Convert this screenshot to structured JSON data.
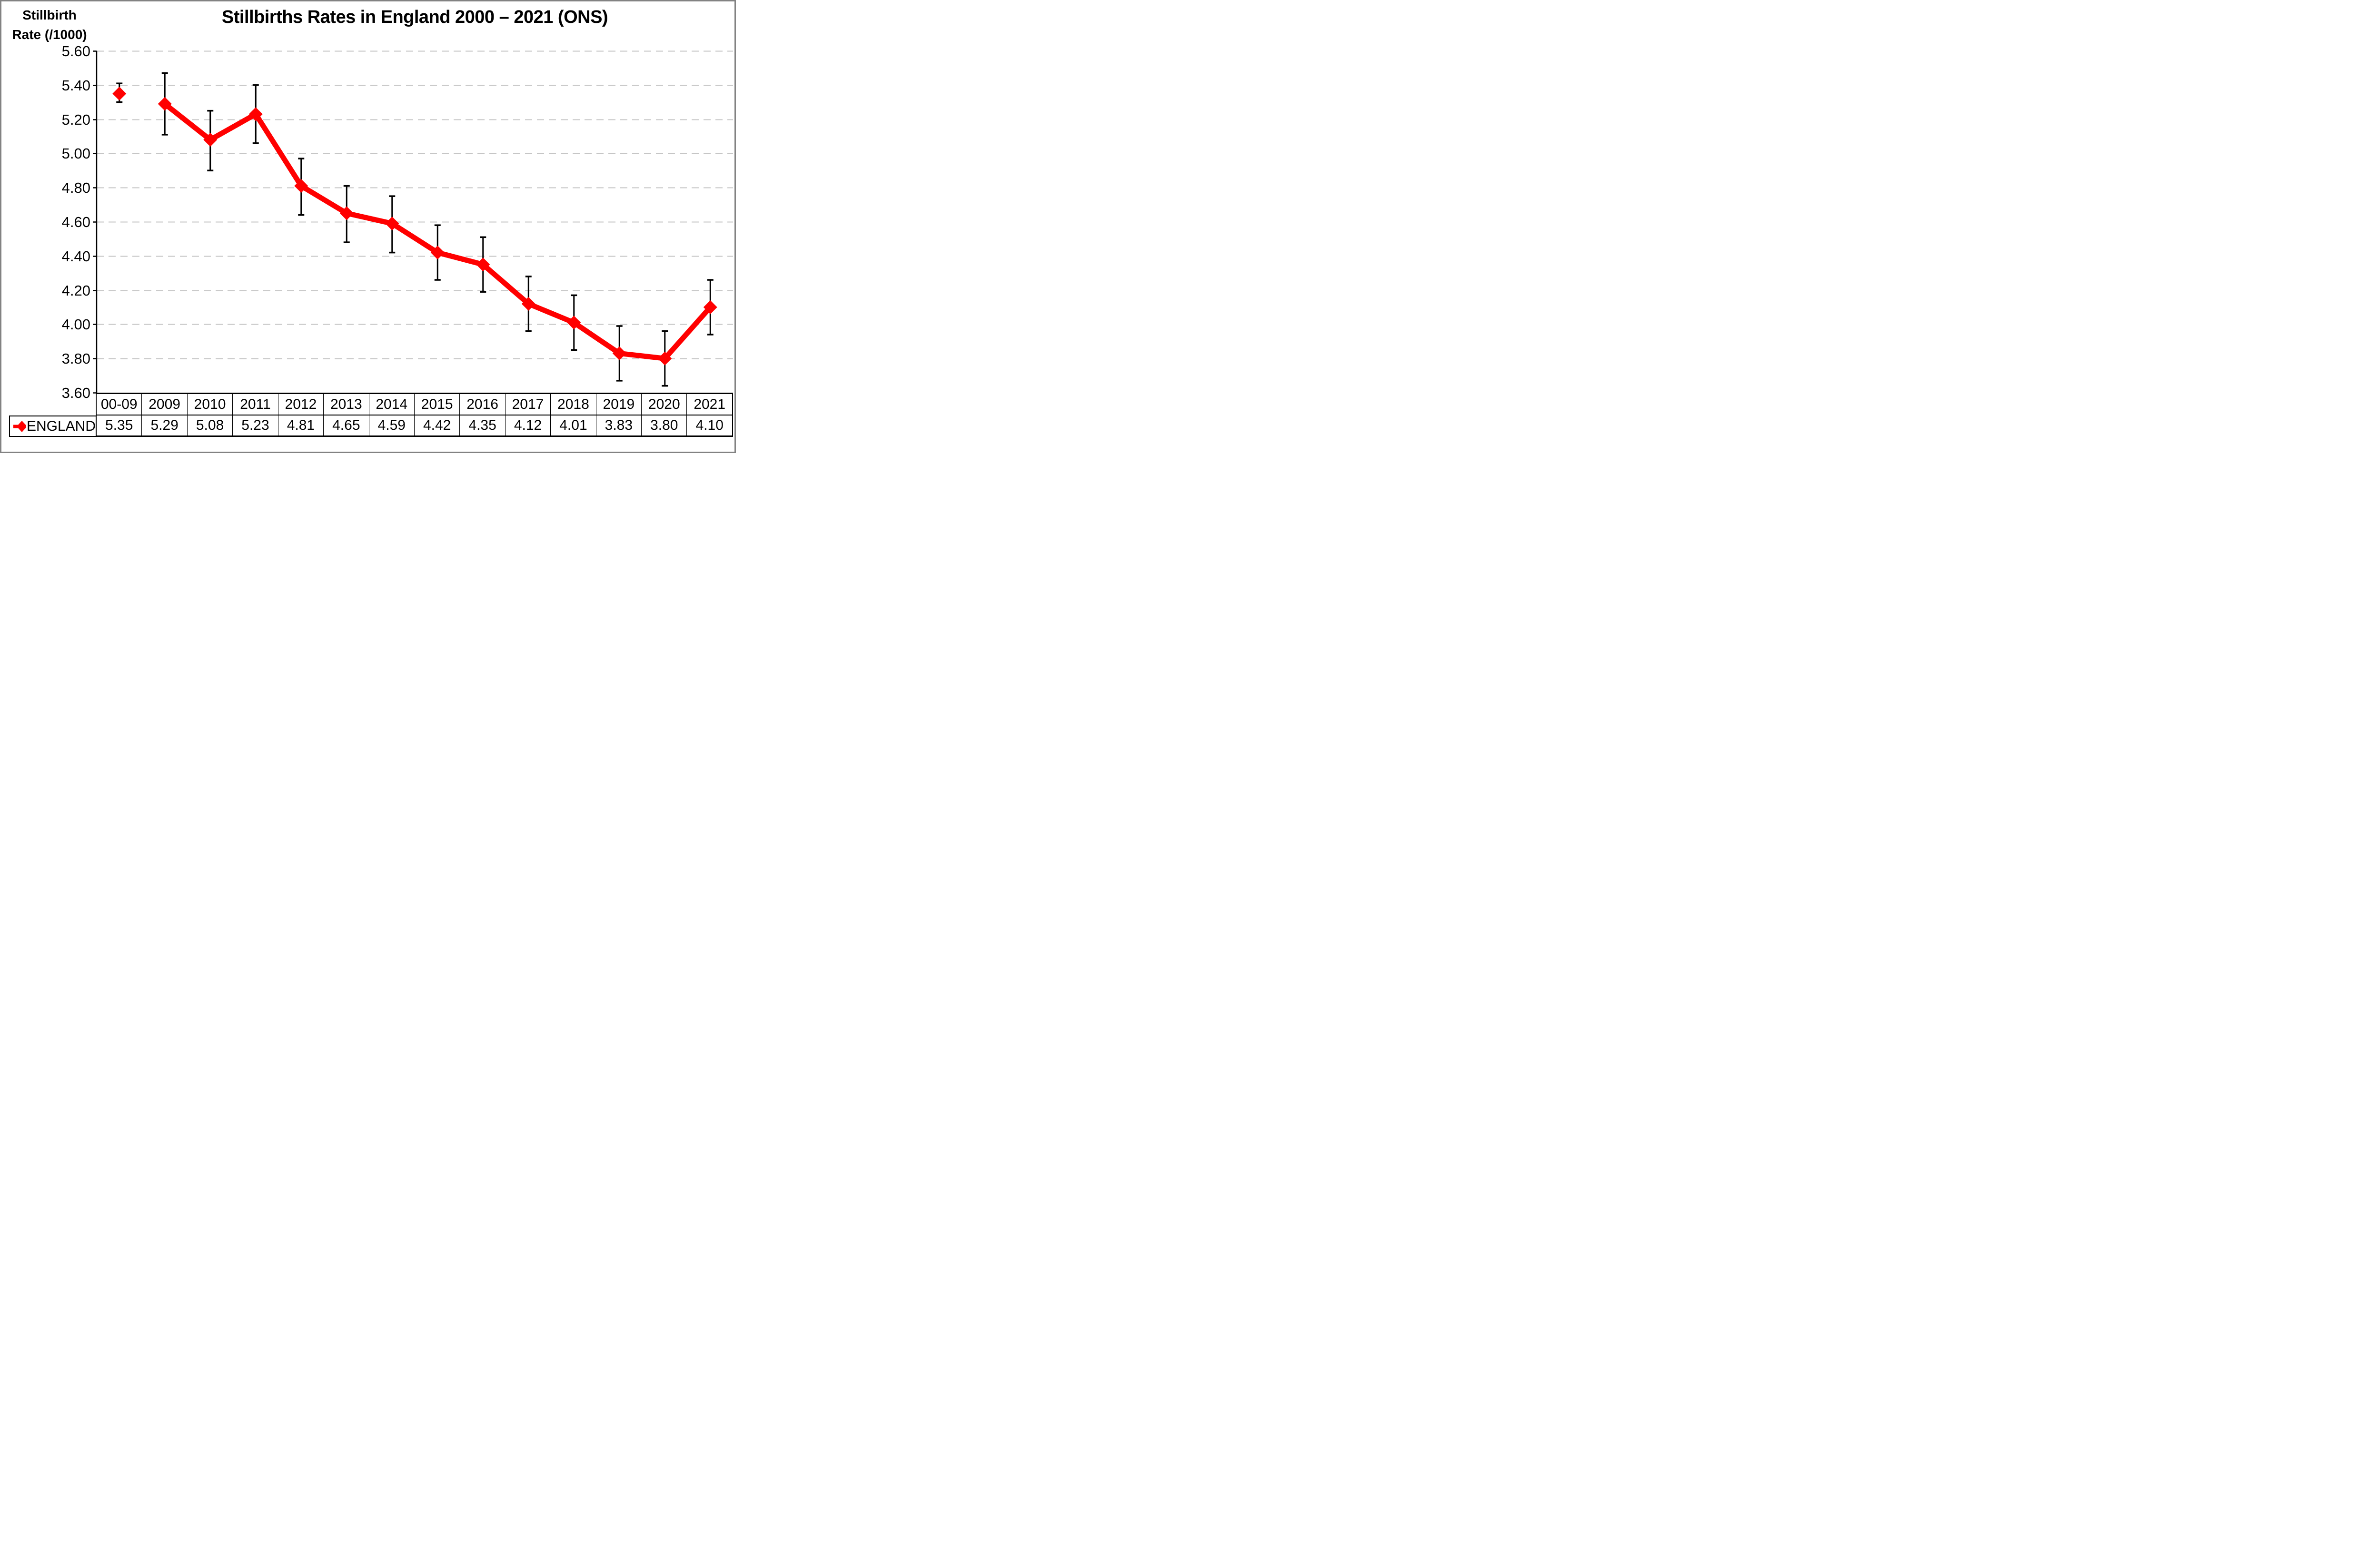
{
  "window": {
    "frame_color": "#828282",
    "background_color": "#ffffff"
  },
  "title": "Stillbirths Rates in England 2000 – 2021 (ONS)",
  "y_axis_title": {
    "line1": "Stillbirth",
    "line2": "Rate (/1000)"
  },
  "chart_data": {
    "type": "line",
    "title": "Stillbirths Rates in England 2000 – 2021 (ONS)",
    "ylabel": "Stillbirth Rate (/1000)",
    "xlabel": "",
    "categories": [
      "00-09",
      "2009",
      "2010",
      "2011",
      "2012",
      "2013",
      "2014",
      "2015",
      "2016",
      "2017",
      "2018",
      "2019",
      "2020",
      "2021"
    ],
    "series": [
      {
        "name": "ENGLAND",
        "color": "#ff0000",
        "marker": "diamond",
        "values": [
          5.35,
          5.29,
          5.08,
          5.23,
          4.81,
          4.65,
          4.59,
          4.42,
          4.35,
          4.12,
          4.01,
          3.83,
          3.8,
          4.1
        ],
        "error_bar_low": [
          5.3,
          5.11,
          4.9,
          5.06,
          4.64,
          4.48,
          4.42,
          4.26,
          4.19,
          3.96,
          3.85,
          3.67,
          3.64,
          3.94
        ],
        "error_bar_high": [
          5.41,
          5.47,
          5.25,
          5.4,
          4.97,
          4.81,
          4.75,
          4.58,
          4.51,
          4.28,
          4.17,
          3.99,
          3.96,
          4.26
        ],
        "line_starts_at_index": 1
      }
    ],
    "ylim": [
      3.6,
      5.6
    ],
    "ytick_step": 0.2,
    "ytick_labels": [
      "5.60",
      "5.40",
      "5.20",
      "5.00",
      "4.80",
      "4.60",
      "4.40",
      "4.20",
      "4.00",
      "3.80",
      "3.60"
    ],
    "gridlines": "horizontal-dashed",
    "grid_color": "#c6c6c6",
    "error_bar_color": "#000000",
    "axis_color": "#000000",
    "legend_position": "table-row-label"
  }
}
